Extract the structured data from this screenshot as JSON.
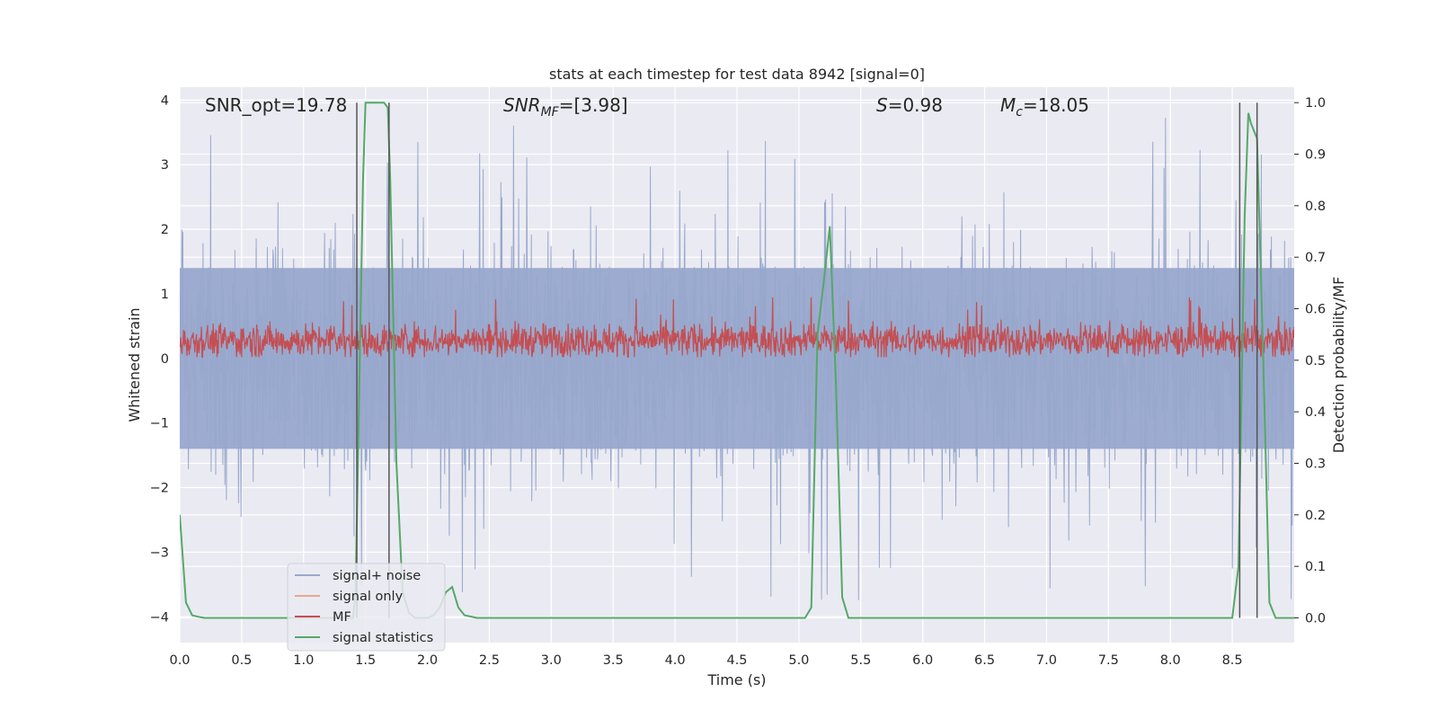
{
  "chart_data": {
    "type": "line",
    "title": "stats at each timestep for test data 8942 [signal=0]",
    "xlabel": "Time (s)",
    "ylabel_left": "Whitened strain",
    "ylabel_right": "Detection probability/MF",
    "xlim": [
      0.0,
      9.0
    ],
    "ylim_left": [
      -4.4,
      4.2
    ],
    "ylim_right": [
      -0.048,
      1.03
    ],
    "x_ticks": [
      "0.0",
      "0.5",
      "1.0",
      "1.5",
      "2.0",
      "2.5",
      "3.0",
      "3.5",
      "4.0",
      "4.5",
      "5.0",
      "5.5",
      "6.0",
      "6.5",
      "7.0",
      "7.5",
      "8.0",
      "8.5"
    ],
    "y_left_ticks": [
      "4",
      "3",
      "2",
      "1",
      "0",
      "−1",
      "−2",
      "−3",
      "−4"
    ],
    "y_right_ticks": [
      "1.0",
      "0.9",
      "0.8",
      "0.7",
      "0.6",
      "0.5",
      "0.4",
      "0.3",
      "0.2",
      "0.1",
      "0.0"
    ],
    "grid": true,
    "legend_placement": "lower-left",
    "annotations": {
      "snr_opt": "SNR_opt=19.78",
      "snr_mf_sym": "SNR",
      "snr_mf_sub": "MF",
      "snr_mf_val": "=[3.98]",
      "s_sym": "S",
      "s_val": "=0.98",
      "mc_sym": "M",
      "mc_sub": "c",
      "mc_val": "=18.05"
    },
    "series": [
      {
        "name": "signal+ noise",
        "color": "#98a8cc",
        "axis": "left",
        "band_upper": 1.4,
        "band_lower": -1.4,
        "peak_high": 3.9,
        "peak_low": -4.0
      },
      {
        "name": "signal only",
        "color": "#e8a88a",
        "axis": "left"
      },
      {
        "name": "MF",
        "color": "#c44e52",
        "axis": "left",
        "band_upper": 0.55,
        "band_lower": 0.05
      },
      {
        "name": "signal statistics",
        "color": "#55a868",
        "axis": "right",
        "x": [
          0.0,
          0.05,
          0.1,
          0.15,
          0.2,
          1.4,
          1.42,
          1.45,
          1.48,
          1.5,
          1.55,
          1.6,
          1.65,
          1.68,
          1.7,
          1.75,
          1.8,
          1.85,
          1.9,
          2.0,
          2.05,
          2.1,
          2.15,
          2.2,
          2.25,
          2.3,
          2.4,
          5.05,
          5.1,
          5.15,
          5.2,
          5.25,
          5.3,
          5.35,
          5.4,
          5.45,
          8.5,
          8.55,
          8.6,
          8.63,
          8.65,
          8.7,
          8.75,
          8.8,
          8.85,
          9.0
        ],
        "y": [
          0.2,
          0.03,
          0.005,
          0.002,
          0.0,
          0.0,
          0.05,
          0.45,
          0.85,
          1.0,
          1.0,
          1.0,
          1.0,
          0.99,
          0.85,
          0.3,
          0.05,
          0.01,
          0.0,
          0.0,
          0.005,
          0.02,
          0.05,
          0.06,
          0.02,
          0.005,
          0.0,
          0.0,
          0.02,
          0.55,
          0.65,
          0.76,
          0.45,
          0.04,
          0.0,
          0.0,
          0.0,
          0.1,
          0.78,
          0.98,
          0.96,
          0.93,
          0.5,
          0.03,
          0.0,
          0.0
        ]
      }
    ],
    "vertical_lines_x": [
      1.43,
      1.69,
      8.56,
      8.7
    ],
    "vertical_line_color": "#555555"
  },
  "colors": {
    "axes_bg": "#eaeaf2",
    "grid": "#ffffff",
    "text": "#262626"
  }
}
